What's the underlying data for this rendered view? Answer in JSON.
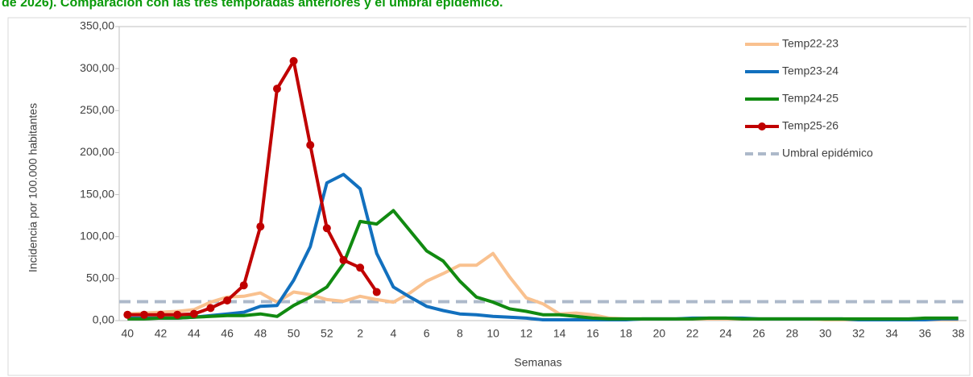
{
  "chart_data": {
    "type": "line",
    "title": "de 2026). Comparación con las tres temporadas anteriores y el umbral epidémico.",
    "x_label": "Semanas",
    "y_label": "Incidencia por 100.000 habitantes",
    "categories": [
      40,
      null,
      42,
      null,
      44,
      null,
      46,
      null,
      48,
      null,
      50,
      null,
      52,
      null,
      2,
      null,
      4,
      null,
      6,
      null,
      8,
      null,
      10,
      null,
      12,
      null,
      14,
      null,
      16,
      null,
      18,
      null,
      20,
      null,
      22,
      null,
      24,
      null,
      26,
      null,
      28,
      null,
      30,
      null,
      32,
      null,
      34,
      null,
      36,
      null,
      38
    ],
    "ylim": [
      0,
      350
    ],
    "yticks": [
      {
        "value": 0,
        "label": "0,00"
      },
      {
        "value": 50,
        "label": "50,00"
      },
      {
        "value": 100,
        "label": "100,00"
      },
      {
        "value": 150,
        "label": "150,00"
      },
      {
        "value": 200,
        "label": "200,00"
      },
      {
        "value": 250,
        "label": "250,00"
      },
      {
        "value": 300,
        "label": "300,00"
      },
      {
        "value": 350,
        "label": "350,00"
      }
    ],
    "series": [
      {
        "name": "Temp22-23",
        "color": "#f9c18f",
        "values": [
          8,
          9,
          10,
          11,
          13,
          22,
          28,
          29,
          33,
          22,
          34,
          31,
          25,
          23,
          29,
          25,
          22,
          33,
          47,
          56,
          66,
          66,
          80,
          52,
          27,
          20,
          8,
          9,
          7,
          3,
          2,
          2,
          2,
          2,
          2,
          2,
          2,
          2,
          2,
          2,
          2,
          2,
          1,
          1,
          1,
          1,
          1,
          1,
          1,
          1,
          1
        ]
      },
      {
        "name": "Temp23-24",
        "color": "#1270be",
        "values": [
          3,
          3,
          3,
          3,
          4,
          6,
          8,
          10,
          17,
          18,
          48,
          88,
          164,
          174,
          157,
          80,
          40,
          28,
          17,
          12,
          8,
          7,
          5,
          4,
          3,
          1,
          1,
          1,
          1,
          1,
          1,
          2,
          2,
          2,
          3,
          3,
          3,
          3,
          2,
          2,
          2,
          2,
          2,
          2,
          1,
          1,
          1,
          1,
          1,
          2,
          2
        ]
      },
      {
        "name": "Temp24-25",
        "color": "#118a11",
        "values": [
          2,
          2,
          3,
          3,
          4,
          5,
          6,
          6,
          8,
          5,
          18,
          28,
          40,
          68,
          118,
          115,
          131,
          107,
          83,
          71,
          47,
          28,
          22,
          14,
          11,
          7,
          7,
          5,
          3,
          2,
          2,
          2,
          2,
          2,
          2,
          3,
          3,
          2,
          2,
          2,
          2,
          2,
          2,
          2,
          2,
          2,
          2,
          2,
          3,
          3,
          3
        ]
      },
      {
        "name": "Temp25-26",
        "color": "#c00000",
        "markers": true,
        "values": [
          7,
          7,
          7,
          7,
          8,
          15,
          24,
          42,
          112,
          276,
          309,
          209,
          110,
          72,
          63,
          34,
          null,
          null,
          null,
          null,
          null,
          null,
          null,
          null,
          null,
          null,
          null,
          null,
          null,
          null,
          null,
          null,
          null,
          null,
          null,
          null,
          null,
          null,
          null,
          null,
          null,
          null,
          null,
          null,
          null,
          null,
          null,
          null,
          null,
          null,
          null
        ]
      }
    ],
    "threshold": {
      "name": "Umbral epidémico",
      "value": 22.5,
      "color": "#adb9ca"
    }
  }
}
